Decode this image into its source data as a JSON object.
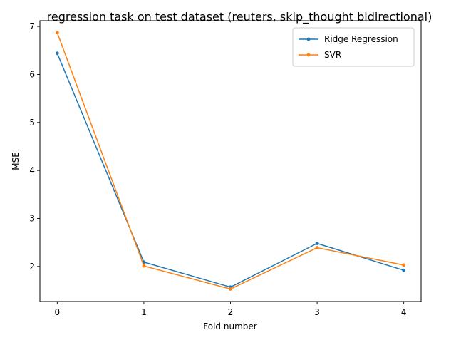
{
  "chart_data": {
    "type": "line",
    "title": "regression task on test dataset (reuters, skip_thought bidirectional)",
    "xlabel": "Fold number",
    "ylabel": "MSE",
    "x": [
      0,
      1,
      2,
      3,
      4
    ],
    "x_ticks": [
      "0",
      "1",
      "2",
      "3",
      "4"
    ],
    "y_ticks": [
      "2",
      "3",
      "4",
      "5",
      "6",
      "7"
    ],
    "xlim": [
      -0.2,
      4.2
    ],
    "ylim": [
      1.27,
      7.12
    ],
    "grid": false,
    "legend_position": "top-right",
    "series": [
      {
        "name": "Ridge Regression",
        "color": "#1f77b4",
        "marker": "dot",
        "values": [
          6.44,
          2.09,
          1.57,
          2.48,
          1.92
        ]
      },
      {
        "name": "SVR",
        "color": "#ff7f0e",
        "marker": "dot",
        "values": [
          6.87,
          2.01,
          1.53,
          2.39,
          2.03
        ]
      }
    ]
  }
}
